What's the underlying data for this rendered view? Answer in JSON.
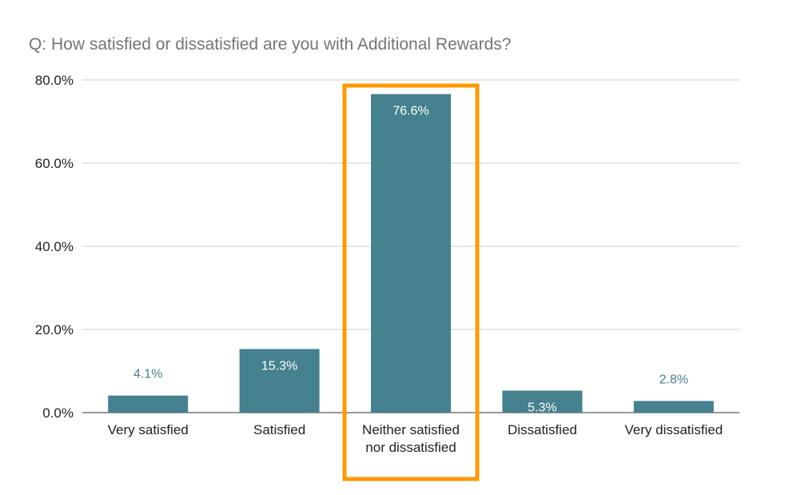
{
  "chart_data": {
    "type": "bar",
    "title": "Q: How satisfied or dissatisfied are you with Additional Rewards?",
    "categories": [
      [
        "Very satisfied"
      ],
      [
        "Satisfied"
      ],
      [
        "Neither satisfied",
        "nor dissatisfied"
      ],
      [
        "Dissatisfied"
      ],
      [
        "Very dissatisfied"
      ]
    ],
    "values": [
      4.1,
      15.3,
      76.6,
      5.3,
      2.8
    ],
    "data_labels": [
      "4.1%",
      "15.3%",
      "76.6%",
      "5.3%",
      "2.8%"
    ],
    "y_ticks": [
      "0.0%",
      "20.0%",
      "40.0%",
      "60.0%",
      "80.0%"
    ],
    "ylim": [
      0,
      80
    ],
    "grid": true,
    "highlighted_category": "Neither satisfied nor dissatisfied",
    "colors": {
      "bar": "#45818e",
      "highlight": "#ff9900",
      "grid": "#cccccc",
      "label_outside": "#45818e",
      "label_inside": "#ffffff"
    }
  }
}
